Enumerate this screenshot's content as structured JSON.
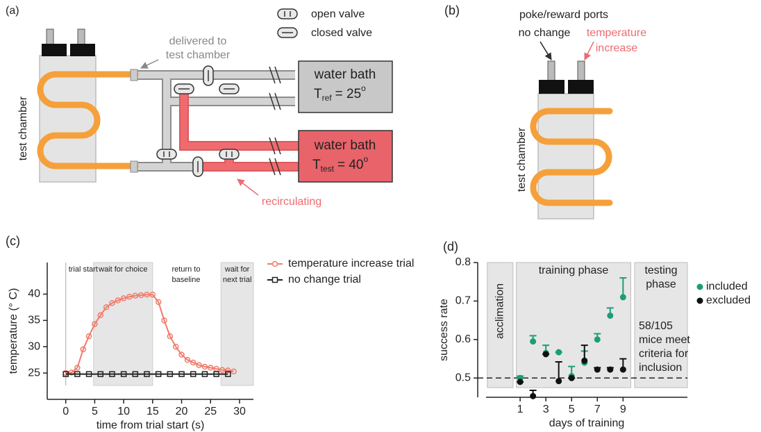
{
  "panels": {
    "a": "(a)",
    "b": "(b)",
    "c": "(c)",
    "d": "(d)"
  },
  "diagram_a": {
    "legend": {
      "open": "open valve",
      "closed": "closed valve"
    },
    "delivered": [
      "delivered to",
      "test chamber"
    ],
    "chamber": "test chamber",
    "bath_ref": {
      "title": "water bath",
      "symbol": "T",
      "subscript": "ref",
      "value": "= 25",
      "superscript": "o"
    },
    "bath_test": {
      "title": "water bath",
      "symbol": "T",
      "subscript": "test",
      "value": "= 40",
      "superscript": "o"
    },
    "recirculating": "recirculating"
  },
  "diagram_b": {
    "ports": "poke/reward ports",
    "no_change": "no change",
    "increase": [
      "temperature",
      "increase"
    ],
    "chamber": "test chamber"
  },
  "chart_data": [
    {
      "type": "line",
      "xlabel": "time from trial start (s)",
      "ylabel": "temperature (° C)",
      "xlim": [
        -3.2,
        32.4
      ],
      "ylim": [
        20,
        46
      ],
      "xticks": [
        0,
        5,
        10,
        15,
        20,
        25,
        30
      ],
      "yticks": [
        25,
        30,
        35,
        40
      ],
      "series": [
        {
          "name": "temperature increase trial",
          "color": "#f07b6a",
          "marker": "circle",
          "x": [
            0,
            1,
            2,
            3,
            4,
            5,
            6,
            7,
            8,
            9,
            10,
            11,
            12,
            13,
            14,
            15,
            16,
            17,
            18,
            19,
            20,
            21,
            22,
            23,
            24,
            25,
            26,
            27,
            28,
            29
          ],
          "values": [
            25,
            25.1,
            26,
            29.5,
            32,
            34.3,
            36,
            37.5,
            38.3,
            38.8,
            39.2,
            39.5,
            39.7,
            39.8,
            39.9,
            39.9,
            38.5,
            35,
            32,
            30,
            28.5,
            27.5,
            27,
            26.5,
            26.2,
            26,
            25.8,
            25.6,
            25.5,
            25.3
          ]
        },
        {
          "name": "no change trial",
          "color": "#222222",
          "marker": "square",
          "x": [
            0,
            2,
            4,
            6,
            8,
            10,
            12,
            14,
            16,
            18,
            20,
            22,
            24,
            26,
            28
          ],
          "values": [
            24.8,
            24.8,
            24.8,
            24.8,
            24.8,
            24.8,
            24.8,
            24.8,
            24.8,
            24.8,
            24.8,
            24.8,
            24.8,
            24.8,
            24.8
          ]
        }
      ],
      "regions": [
        {
          "label": [
            "wait for choice"
          ],
          "range": [
            4.8,
            15
          ]
        },
        {
          "label": [
            "wait for",
            "next trial"
          ],
          "range": [
            26.8,
            32.4
          ]
        }
      ],
      "markers": [
        {
          "label": "trial start",
          "x": 0
        }
      ],
      "annotation": [
        "return to",
        "baseline"
      ],
      "legend": "outside-right"
    },
    {
      "type": "scatter",
      "xlabel": "days of training",
      "ylabel": "success rate",
      "xlim": [
        -1.65,
        14
      ],
      "ylim": [
        0.45,
        0.8
      ],
      "xticks": [
        1,
        3,
        5,
        7,
        9
      ],
      "yticks": [
        0.5,
        0.6,
        0.7,
        0.8
      ],
      "reference_line": 0.5,
      "series": [
        {
          "name": "included",
          "color": "#1b9e77",
          "x": [
            1,
            2,
            3,
            4,
            5,
            6,
            7,
            8,
            9
          ],
          "values": [
            0.5,
            0.595,
            0.565,
            0.567,
            0.505,
            0.54,
            0.6,
            0.662,
            0.71
          ],
          "errors": [
            0.005,
            0.015,
            0.02,
            0,
            0.025,
            0.03,
            0.015,
            0.02,
            0.05
          ]
        },
        {
          "name": "excluded",
          "color": "#111111",
          "x": [
            1,
            2,
            3,
            4,
            5,
            6,
            7,
            8,
            9
          ],
          "values": [
            0.49,
            0.453,
            0.562,
            0.492,
            0.5,
            0.545,
            0.522,
            0.522,
            0.522
          ],
          "errors": [
            0,
            0.015,
            0,
            0.05,
            0,
            0.04,
            0.005,
            0.005,
            0.028
          ]
        }
      ],
      "phases": [
        {
          "label": [
            "acclimation"
          ],
          "range": [
            -1.55,
            0.45
          ],
          "rotated": true
        },
        {
          "label": [
            "training phase"
          ],
          "range": [
            0.7,
            9.6
          ],
          "rotated": false
        },
        {
          "label": [
            "testing",
            "phase"
          ],
          "range": [
            9.9,
            14
          ],
          "rotated": false
        }
      ],
      "phase_ylim": [
        0.475,
        0.8
      ],
      "note": [
        "58/105",
        "mice meet",
        "criteria for",
        "inclusion"
      ],
      "legend": "outside-right"
    }
  ]
}
